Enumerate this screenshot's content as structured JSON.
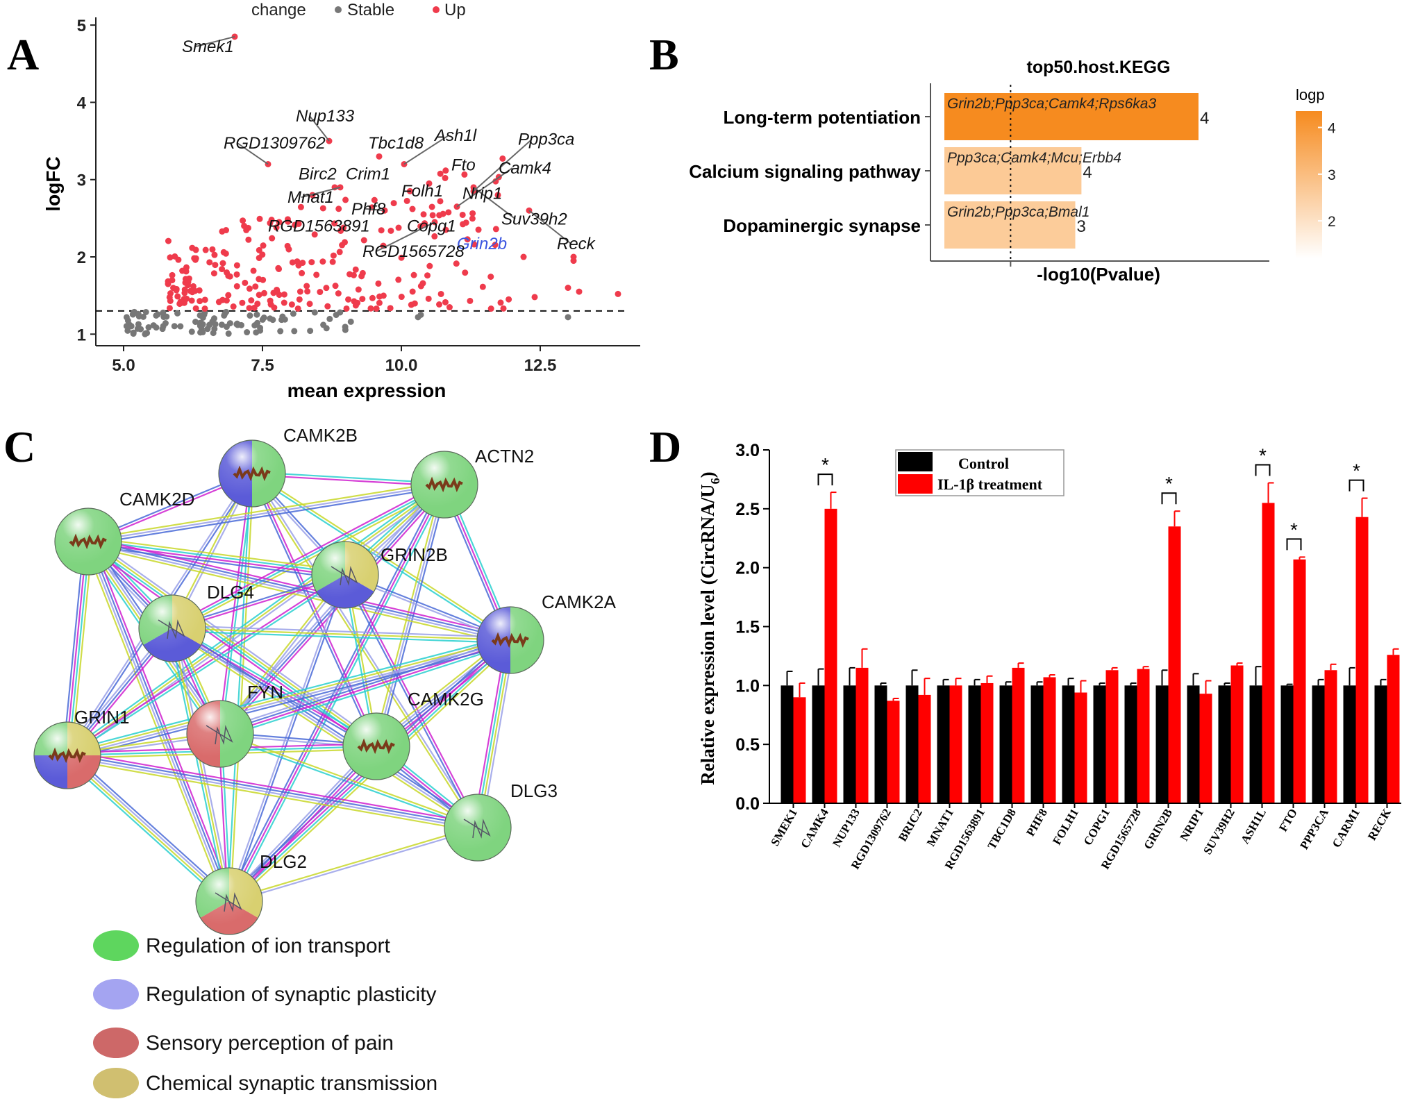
{
  "panel_letters": [
    "A",
    "B",
    "C",
    "D"
  ],
  "chart_data": [
    {
      "panel": "A",
      "type": "scatter",
      "xlabel": "mean expression",
      "ylabel": "logFC",
      "xlim": [
        4.5,
        14.3
      ],
      "ylim": [
        0.85,
        5.1
      ],
      "xticks": [
        5.0,
        7.5,
        10.0,
        12.5
      ],
      "xtick_labels": [
        "5.0",
        "7.5",
        "10.0",
        "12.5"
      ],
      "yticks": [
        1,
        2,
        3,
        4,
        5
      ],
      "ytick_labels": [
        "1",
        "2",
        "3",
        "4",
        "5"
      ],
      "threshold": 1.3,
      "grid": false,
      "legend": {
        "title": "change",
        "position": "top",
        "items": [
          {
            "name": "Stable",
            "color": "#777777"
          },
          {
            "name": "Up",
            "color": "#ef3b4c"
          }
        ]
      },
      "labels": [
        {
          "text": "Smek1",
          "color": "#111111",
          "x": 6.05,
          "y": 4.65,
          "px": 7.0,
          "py": 4.85
        },
        {
          "text": "Nup133",
          "color": "#111111",
          "x": 8.1,
          "y": 3.75,
          "px": 8.7,
          "py": 3.5
        },
        {
          "text": "RGD1309762",
          "color": "#111111",
          "x": 6.8,
          "y": 3.4,
          "px": 7.6,
          "py": 3.2
        },
        {
          "text": "Tbc1d8",
          "color": "#111111",
          "x": 9.4,
          "y": 3.4,
          "px": 9.6,
          "py": 3.3
        },
        {
          "text": "Ash1l",
          "color": "#111111",
          "x": 10.6,
          "y": 3.5,
          "px": 10.05,
          "py": 3.2
        },
        {
          "text": "Ppp3ca",
          "color": "#111111",
          "x": 12.1,
          "y": 3.45,
          "px": 11.3,
          "py": 2.85
        },
        {
          "text": "Fto",
          "color": "#111111",
          "x": 10.9,
          "y": 3.12,
          "px": 10.5,
          "py": 2.95
        },
        {
          "text": "Birc2",
          "color": "#111111",
          "x": 8.15,
          "y": 3.0,
          "px": 8.4,
          "py": 2.8
        },
        {
          "text": "Crim1",
          "color": "#111111",
          "x": 9.0,
          "y": 3.0,
          "px": 8.8,
          "py": 2.9
        },
        {
          "text": "Camk4",
          "color": "#111111",
          "x": 11.75,
          "y": 3.08,
          "px": 11.0,
          "py": 2.65
        },
        {
          "text": "Mnat1",
          "color": "#111111",
          "x": 7.95,
          "y": 2.7,
          "px": 8.9,
          "py": 2.9
        },
        {
          "text": "Folh1",
          "color": "#111111",
          "x": 10.0,
          "y": 2.78,
          "px": 10.2,
          "py": 2.62
        },
        {
          "text": "Nrip1",
          "color": "#111111",
          "x": 11.1,
          "y": 2.75,
          "px": 10.7,
          "py": 2.72
        },
        {
          "text": "Phf8",
          "color": "#111111",
          "x": 9.1,
          "y": 2.55,
          "px": 9.7,
          "py": 2.6
        },
        {
          "text": "Suv39h2",
          "color": "#111111",
          "x": 11.8,
          "y": 2.42,
          "px": 11.3,
          "py": 2.9
        },
        {
          "text": "RGD1563891",
          "color": "#111111",
          "x": 7.6,
          "y": 2.33,
          "px": 7.8,
          "py": 2.45
        },
        {
          "text": "Copg1",
          "color": "#111111",
          "x": 10.1,
          "y": 2.33,
          "px": 10.4,
          "py": 2.55
        },
        {
          "text": "Grin2b",
          "color": "#3b55e0",
          "x": 11.0,
          "y": 2.1,
          "px": 10.8,
          "py": 2.35
        },
        {
          "text": "Reck",
          "color": "#111111",
          "x": 12.8,
          "y": 2.1,
          "px": 12.3,
          "py": 2.6
        },
        {
          "text": "RGD1565728",
          "color": "#111111",
          "x": 9.3,
          "y": 2.0,
          "px": 10.6,
          "py": 2.45
        }
      ]
    },
    {
      "panel": "B",
      "type": "bar",
      "title": "top50.host.KEGG",
      "xlabel": "-log10(Pvalue)",
      "orientation": "horizontal",
      "categories": [
        "Long-term potentiation",
        "Calcium signaling pathway",
        "Dopaminergic synapse"
      ],
      "values": [
        4.35,
        2.45,
        2.35
      ],
      "counts": [
        "4",
        "4",
        "3"
      ],
      "genes": [
        "Grin2b;Ppp3ca;Camk4;Rps6ka3",
        "Ppp3ca;Camk4;Mcu;Erbb4",
        "Grin2b;Ppp3ca;Bmal1"
      ],
      "xlim": [
        0,
        5.5
      ],
      "threshold": 1.3,
      "colorbar": {
        "title": "logp",
        "ticks": [
          2,
          3,
          4
        ],
        "tick_labels": [
          "2",
          "3",
          "4"
        ],
        "range": [
          1.2,
          4.35
        ],
        "low": "#ffffff",
        "high": "#f68b1f"
      }
    },
    {
      "panel": "D",
      "type": "bar",
      "ylabel": "Relative expression  level (CircRNA/U",
      "ylabel_sub": "6",
      "ylabel_end": ")",
      "categories": [
        "SMEK1",
        "CAMK4",
        "NUP133",
        "RGD1309762",
        "BRIC2",
        "MNAT1",
        "RGD1563891",
        "TBC1D8",
        "PHF8",
        "FOLH1",
        "COPG1",
        "RGD1565728",
        "GRIN2B",
        "NRIP1",
        "SUV39H2",
        "ASH1L",
        "FTO",
        "PPP3CA",
        "CARM1",
        "RECK"
      ],
      "series": [
        {
          "name": "Control",
          "color": "#000000",
          "values": [
            1.0,
            1.0,
            1.0,
            1.0,
            1.0,
            1.0,
            1.0,
            1.0,
            1.0,
            1.0,
            1.0,
            1.0,
            1.0,
            1.0,
            1.0,
            1.0,
            1.0,
            1.0,
            1.0,
            1.0
          ],
          "errors": [
            0.12,
            0.14,
            0.15,
            0.02,
            0.13,
            0.05,
            0.05,
            0.03,
            0.03,
            0.06,
            0.02,
            0.02,
            0.13,
            0.1,
            0.02,
            0.16,
            0.01,
            0.05,
            0.15,
            0.05
          ]
        },
        {
          "name": "IL-1β treatment",
          "color": "#ff0000",
          "values": [
            0.9,
            2.5,
            1.15,
            0.87,
            0.92,
            1.0,
            1.02,
            1.15,
            1.07,
            0.94,
            1.13,
            1.14,
            2.35,
            0.93,
            1.17,
            2.55,
            2.07,
            1.13,
            2.43,
            1.26
          ],
          "errors": [
            0.12,
            0.14,
            0.16,
            0.02,
            0.14,
            0.06,
            0.06,
            0.04,
            0.02,
            0.1,
            0.02,
            0.02,
            0.13,
            0.11,
            0.02,
            0.17,
            0.02,
            0.05,
            0.16,
            0.05
          ]
        }
      ],
      "significant": [
        "CAMK4",
        "GRIN2B",
        "ASH1L",
        "FTO",
        "CARM1"
      ],
      "significance_mark": "*",
      "ylim": [
        0,
        3.0
      ],
      "yticks": [
        "0.0",
        "0.5",
        "1.0",
        "1.5",
        "2.0",
        "2.5",
        "3.0"
      ],
      "legend_position": "top"
    }
  ],
  "network": {
    "nodes": [
      {
        "id": "CAMK2B",
        "colors": [
          "#7fd47f",
          "#5b5bd8"
        ],
        "icon": "helix"
      },
      {
        "id": "ACTN2",
        "colors": [
          "#7fd47f"
        ],
        "icon": "helix"
      },
      {
        "id": "CAMK2D",
        "colors": [
          "#7fd47f"
        ],
        "icon": "helix"
      },
      {
        "id": "GRIN2B",
        "colors": [
          "#d8d070",
          "#5b5bd8",
          "#7fd47f"
        ],
        "icon": "structure"
      },
      {
        "id": "DLG4",
        "colors": [
          "#d8d070",
          "#5b5bd8",
          "#7fd47f"
        ],
        "icon": "structure"
      },
      {
        "id": "CAMK2A",
        "colors": [
          "#7fd47f",
          "#5b5bd8"
        ],
        "icon": "helix"
      },
      {
        "id": "FYN",
        "colors": [
          "#7fd47f",
          "#d96b6b"
        ],
        "icon": "structure"
      },
      {
        "id": "CAMK2G",
        "colors": [
          "#7fd47f"
        ],
        "icon": "helix"
      },
      {
        "id": "GRIN1",
        "colors": [
          "#d8d070",
          "#d96b6b",
          "#5b5bd8",
          "#7fd47f"
        ],
        "icon": "helix"
      },
      {
        "id": "DLG3",
        "colors": [
          "#7fd47f"
        ],
        "icon": "structure"
      },
      {
        "id": "DLG2",
        "colors": [
          "#d8d070",
          "#d96b6b",
          "#7fd47f"
        ],
        "icon": "structure"
      }
    ],
    "edge_colors": [
      "#c8d82a",
      "#2ad0d0",
      "#d020d0",
      "#4a6ad8",
      "#9aa0e8"
    ],
    "legend": [
      {
        "label": "Regulation of ion transport",
        "color": "#4cd14c"
      },
      {
        "label": "Regulation of synaptic plasticity",
        "color": "#9a9af0"
      },
      {
        "label": "Sensory perception of pain",
        "color": "#c85858"
      },
      {
        "label": "Chemical synaptic transmission",
        "color": "#cbb860"
      }
    ]
  }
}
